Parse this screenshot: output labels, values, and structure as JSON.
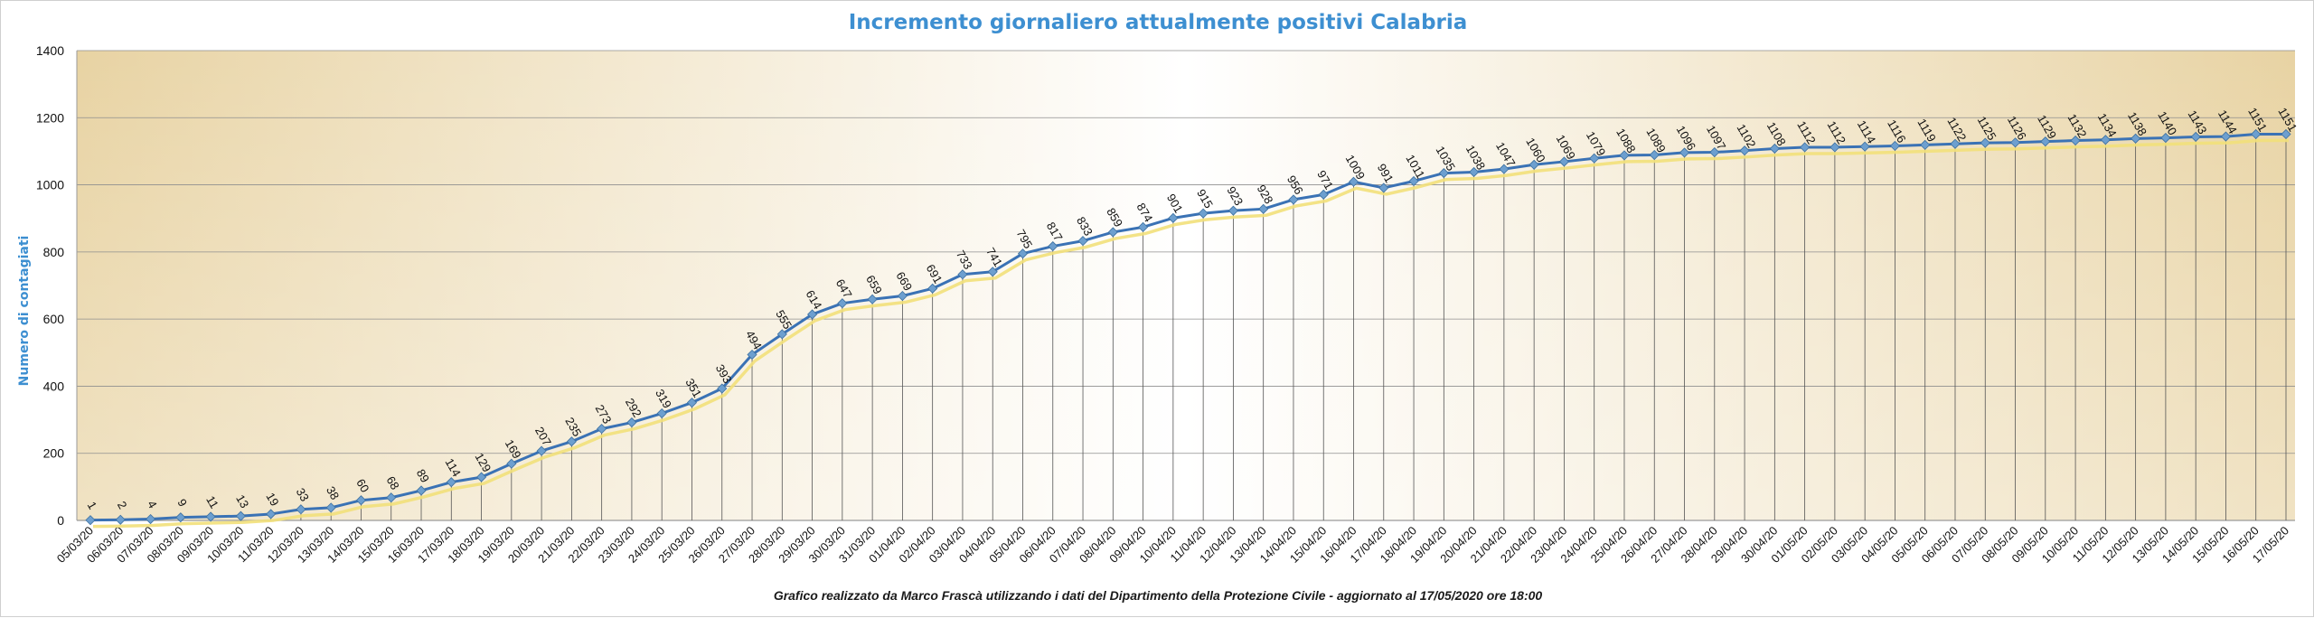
{
  "chart_data": {
    "type": "line",
    "title": "Incremento giornaliero attualmente positivi Calabria",
    "ylabel": "Numero di contagiati",
    "xlabel": "",
    "ylim": [
      0,
      1400
    ],
    "yticks": [
      0,
      200,
      400,
      600,
      800,
      1000,
      1200,
      1400
    ],
    "grid": true,
    "legend": "none",
    "caption": "Grafico  realizzato da Marco Frascà  utilizzando i dati del Dipartimento  della Protezione Civile - aggiornato al 17/05/2020 ore 18:00",
    "colors": {
      "line": "#3a72b5",
      "marker": "#6d9fcf",
      "shadow": "#f2e07a",
      "title": "#3d8fd1",
      "ylabel": "#3d8fd1",
      "bg_center": "#ffffff",
      "bg_edge": "#e8d3a3"
    },
    "categories": [
      "05/03/20",
      "06/03/20",
      "07/03/20",
      "08/03/20",
      "09/03/20",
      "10/03/20",
      "11/03/20",
      "12/03/20",
      "13/03/20",
      "14/03/20",
      "15/03/20",
      "16/03/20",
      "17/03/20",
      "18/03/20",
      "19/03/20",
      "20/03/20",
      "21/03/20",
      "22/03/20",
      "23/03/20",
      "24/03/20",
      "25/03/20",
      "26/03/20",
      "27/03/20",
      "28/03/20",
      "29/03/20",
      "30/03/20",
      "31/03/20",
      "01/04/20",
      "02/04/20",
      "03/04/20",
      "04/04/20",
      "05/04/20",
      "06/04/20",
      "07/04/20",
      "08/04/20",
      "09/04/20",
      "10/04/20",
      "11/04/20",
      "12/04/20",
      "13/04/20",
      "14/04/20",
      "15/04/20",
      "16/04/20",
      "17/04/20",
      "18/04/20",
      "19/04/20",
      "20/04/20",
      "21/04/20",
      "22/04/20",
      "23/04/20",
      "24/04/20",
      "25/04/20",
      "26/04/20",
      "27/04/20",
      "28/04/20",
      "29/04/20",
      "30/04/20",
      "01/05/20",
      "02/05/20",
      "03/05/20",
      "04/05/20",
      "05/05/20",
      "06/05/20",
      "07/05/20",
      "08/05/20",
      "09/05/20",
      "10/05/20",
      "11/05/20",
      "12/05/20",
      "13/05/20",
      "14/05/20",
      "15/05/20",
      "16/05/20",
      "17/05/20"
    ],
    "series": [
      {
        "values": [
          1,
          2,
          4,
          9,
          11,
          13,
          19,
          33,
          38,
          60,
          68,
          89,
          114,
          129,
          169,
          207,
          235,
          273,
          292,
          319,
          351,
          393,
          494,
          555,
          614,
          647,
          659,
          669,
          691,
          733,
          741,
          795,
          817,
          833,
          859,
          874,
          901,
          915,
          923,
          928,
          956,
          971,
          1009,
          991,
          1011,
          1035,
          1038,
          1047,
          1060,
          1069,
          1079,
          1088,
          1089,
          1096,
          1097,
          1102,
          1108,
          1112,
          1112,
          1114,
          1116,
          1119,
          1122,
          1125,
          1126,
          1129,
          1132,
          1134,
          1138,
          1140,
          1143,
          1144,
          1151,
          1151
        ]
      }
    ]
  }
}
